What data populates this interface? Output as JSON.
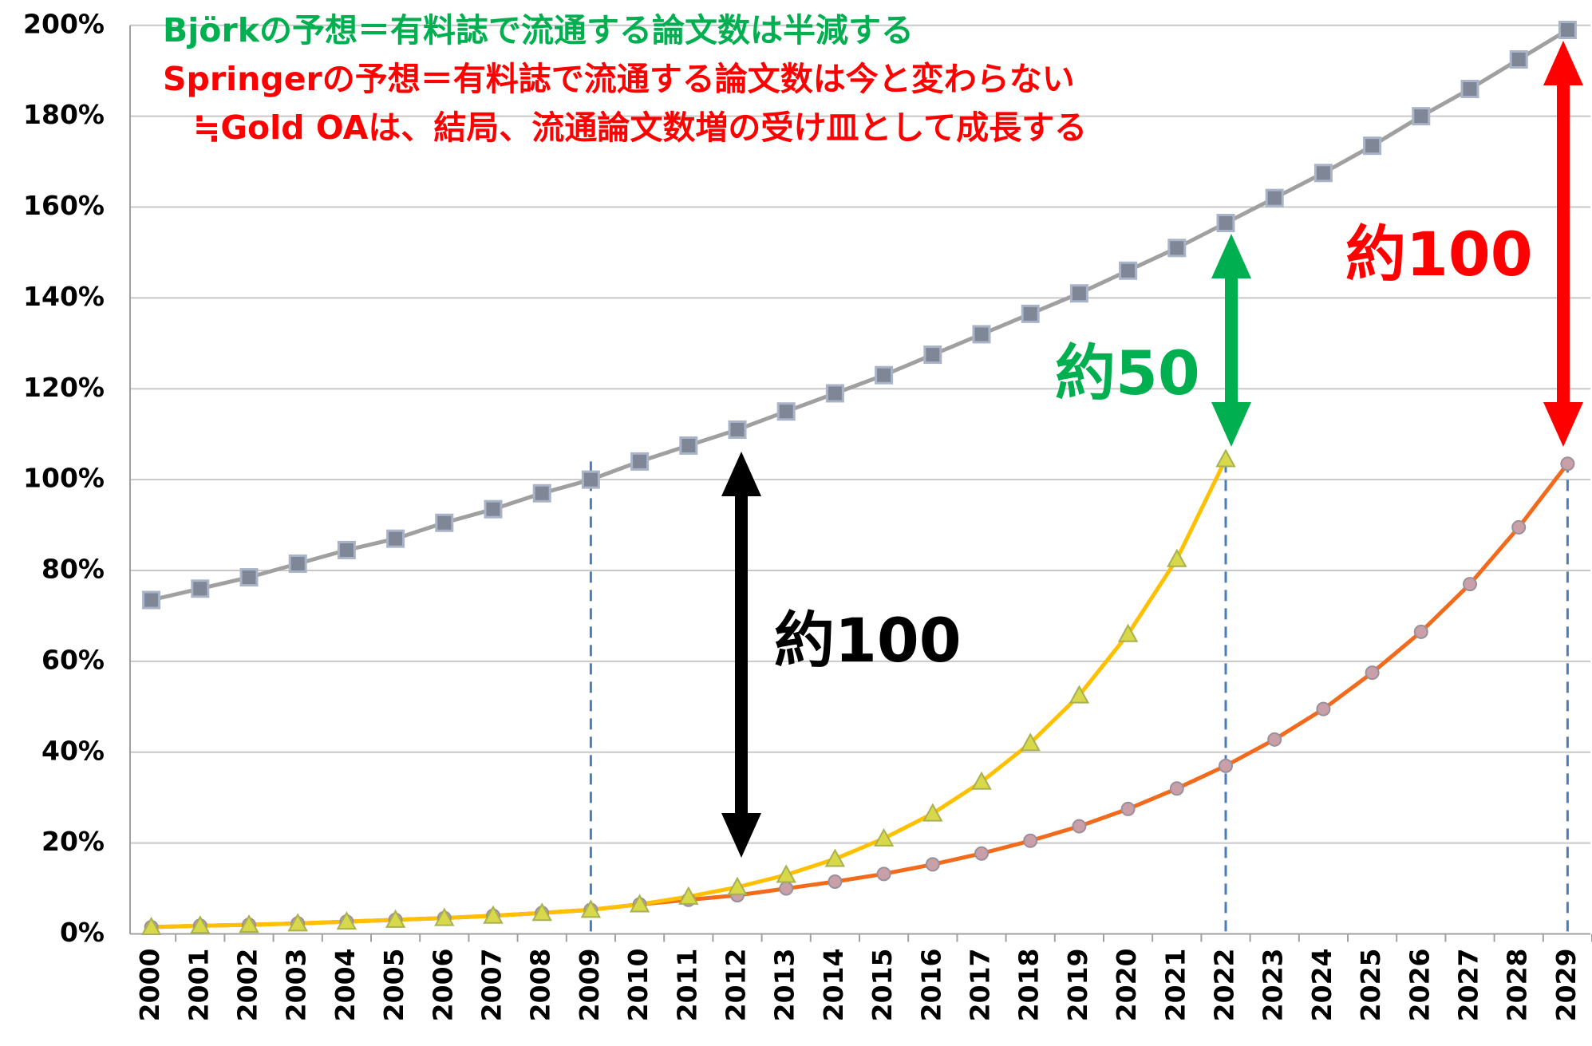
{
  "chart_data": {
    "type": "line",
    "annotations": [
      "Björkの予想＝有料誌で流通する論文数は半減する",
      "Springerの予想＝有料誌で流通する論文数は今と変わらない",
      "≒Gold OAは、結局、流通論文数増の受け皿として成長する",
      "約100",
      "約50",
      "約100"
    ],
    "categories": [
      "2000",
      "2001",
      "2002",
      "2003",
      "2004",
      "2005",
      "2006",
      "2007",
      "2008",
      "2009",
      "2010",
      "2011",
      "2012",
      "2013",
      "2014",
      "2015",
      "2016",
      "2017",
      "2018",
      "2019",
      "2020",
      "2021",
      "2022",
      "2023",
      "2024",
      "2025",
      "2026",
      "2027",
      "2028",
      "2029"
    ],
    "series": [
      {
        "color": "#a0a0a0",
        "marker": "square",
        "values": [
          73.5,
          76,
          78.5,
          81.5,
          84.5,
          87,
          90.5,
          93.5,
          97,
          100,
          104,
          107.5,
          111,
          115,
          119,
          123,
          127.5,
          132,
          136.5,
          141,
          146,
          151,
          156.5,
          162,
          167.5,
          173.5,
          180,
          186,
          192.5,
          199
        ]
      },
      {
        "color": "#f26b1d",
        "marker": "circle",
        "values": [
          1.5,
          1.8,
          2.0,
          2.3,
          2.7,
          3.1,
          3.5,
          4.0,
          4.6,
          5.3,
          6.5,
          7.5,
          8.5,
          10,
          11.5,
          13.2,
          15.3,
          17.7,
          20.5,
          23.7,
          27.5,
          32,
          37,
          42.8,
          49.5,
          57.5,
          66.5,
          77,
          89.5,
          103.5
        ]
      },
      {
        "color": "#ffc000",
        "marker": "triangle",
        "values": [
          1.5,
          1.8,
          2.0,
          2.3,
          2.7,
          3.1,
          3.5,
          4.0,
          4.6,
          5.3,
          6.5,
          8.2,
          10.3,
          13,
          16.5,
          21,
          26.5,
          33.5,
          42,
          52.5,
          66,
          82.5,
          104.5,
          null,
          null,
          null,
          null,
          null,
          null,
          null
        ]
      }
    ],
    "ylim": [
      0,
      200
    ],
    "yticks": [
      {
        "value": 0,
        "label": "0%"
      },
      {
        "value": 20,
        "label": "20%"
      },
      {
        "value": 40,
        "label": "40%"
      },
      {
        "value": 60,
        "label": "60%"
      },
      {
        "value": 80,
        "label": "80%"
      },
      {
        "value": 100,
        "label": "100%"
      },
      {
        "value": 120,
        "label": "120%"
      },
      {
        "value": 140,
        "label": "140%"
      },
      {
        "value": 160,
        "label": "160%"
      },
      {
        "value": 180,
        "label": "180%"
      },
      {
        "value": 200,
        "label": "200%"
      }
    ],
    "grid": true,
    "vlines": [
      "2009",
      "2022",
      "2029"
    ]
  }
}
